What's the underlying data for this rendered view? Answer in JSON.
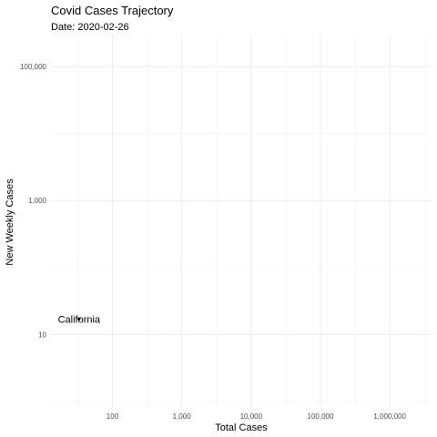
{
  "chart_data": {
    "type": "scatter",
    "title": "Covid Cases Trajectory",
    "subtitle": "Date: 2020-02-26",
    "xlabel": "Total Cases",
    "ylabel": "New Weekly Cases",
    "x_scale": "log10",
    "y_scale": "log10",
    "xlim": [
      13,
      4000000
    ],
    "ylim": [
      0.8,
      300000
    ],
    "x_ticks": [
      100,
      1000,
      10000,
      100000,
      1000000
    ],
    "x_tick_labels": [
      "100",
      "1,000",
      "10,000",
      "100,000",
      "1,000,000"
    ],
    "y_ticks": [
      10,
      1000,
      100000
    ],
    "y_tick_labels": [
      "10",
      "1,000",
      "100,000"
    ],
    "grid": true,
    "points": [
      {
        "label": "California",
        "x": 33,
        "y": 17
      }
    ]
  }
}
